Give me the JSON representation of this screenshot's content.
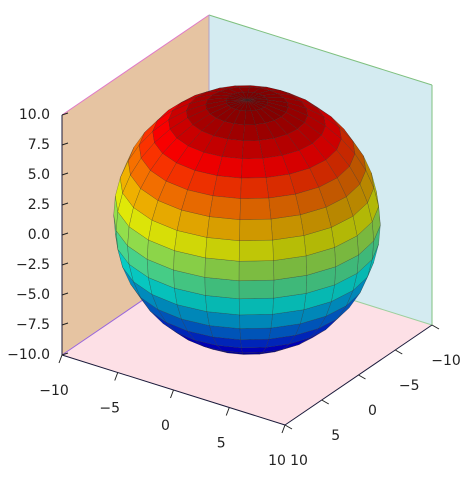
{
  "chart_data": {
    "type": "surface3d",
    "surface": "sphere",
    "radius": 10,
    "center": [
      0,
      0,
      0
    ],
    "colormap": "jet",
    "xlim": [
      -10,
      10
    ],
    "ylim": [
      -10,
      10
    ],
    "zlim": [
      -10,
      10
    ],
    "xticks": [
      {
        "value": -10,
        "label": "−10"
      },
      {
        "value": -5,
        "label": "−5"
      },
      0,
      5,
      10
    ],
    "yticks": [
      {
        "value": -10,
        "label": "−10"
      },
      {
        "value": -5,
        "label": "−5"
      },
      0,
      5,
      10
    ],
    "zticks": [
      {
        "value": -10,
        "label": "−10.0"
      },
      {
        "value": -7.5,
        "label": "−7.5"
      },
      {
        "value": -5,
        "label": "−5.0"
      },
      {
        "value": -2.5,
        "label": "−2.5"
      },
      {
        "value": 0,
        "label": "0.0"
      },
      {
        "value": 2.5,
        "label": "2.5"
      },
      {
        "value": 5,
        "label": "5.0"
      },
      {
        "value": 7.5,
        "label": "7.5"
      },
      {
        "value": 10,
        "label": "10.0"
      }
    ]
  }
}
